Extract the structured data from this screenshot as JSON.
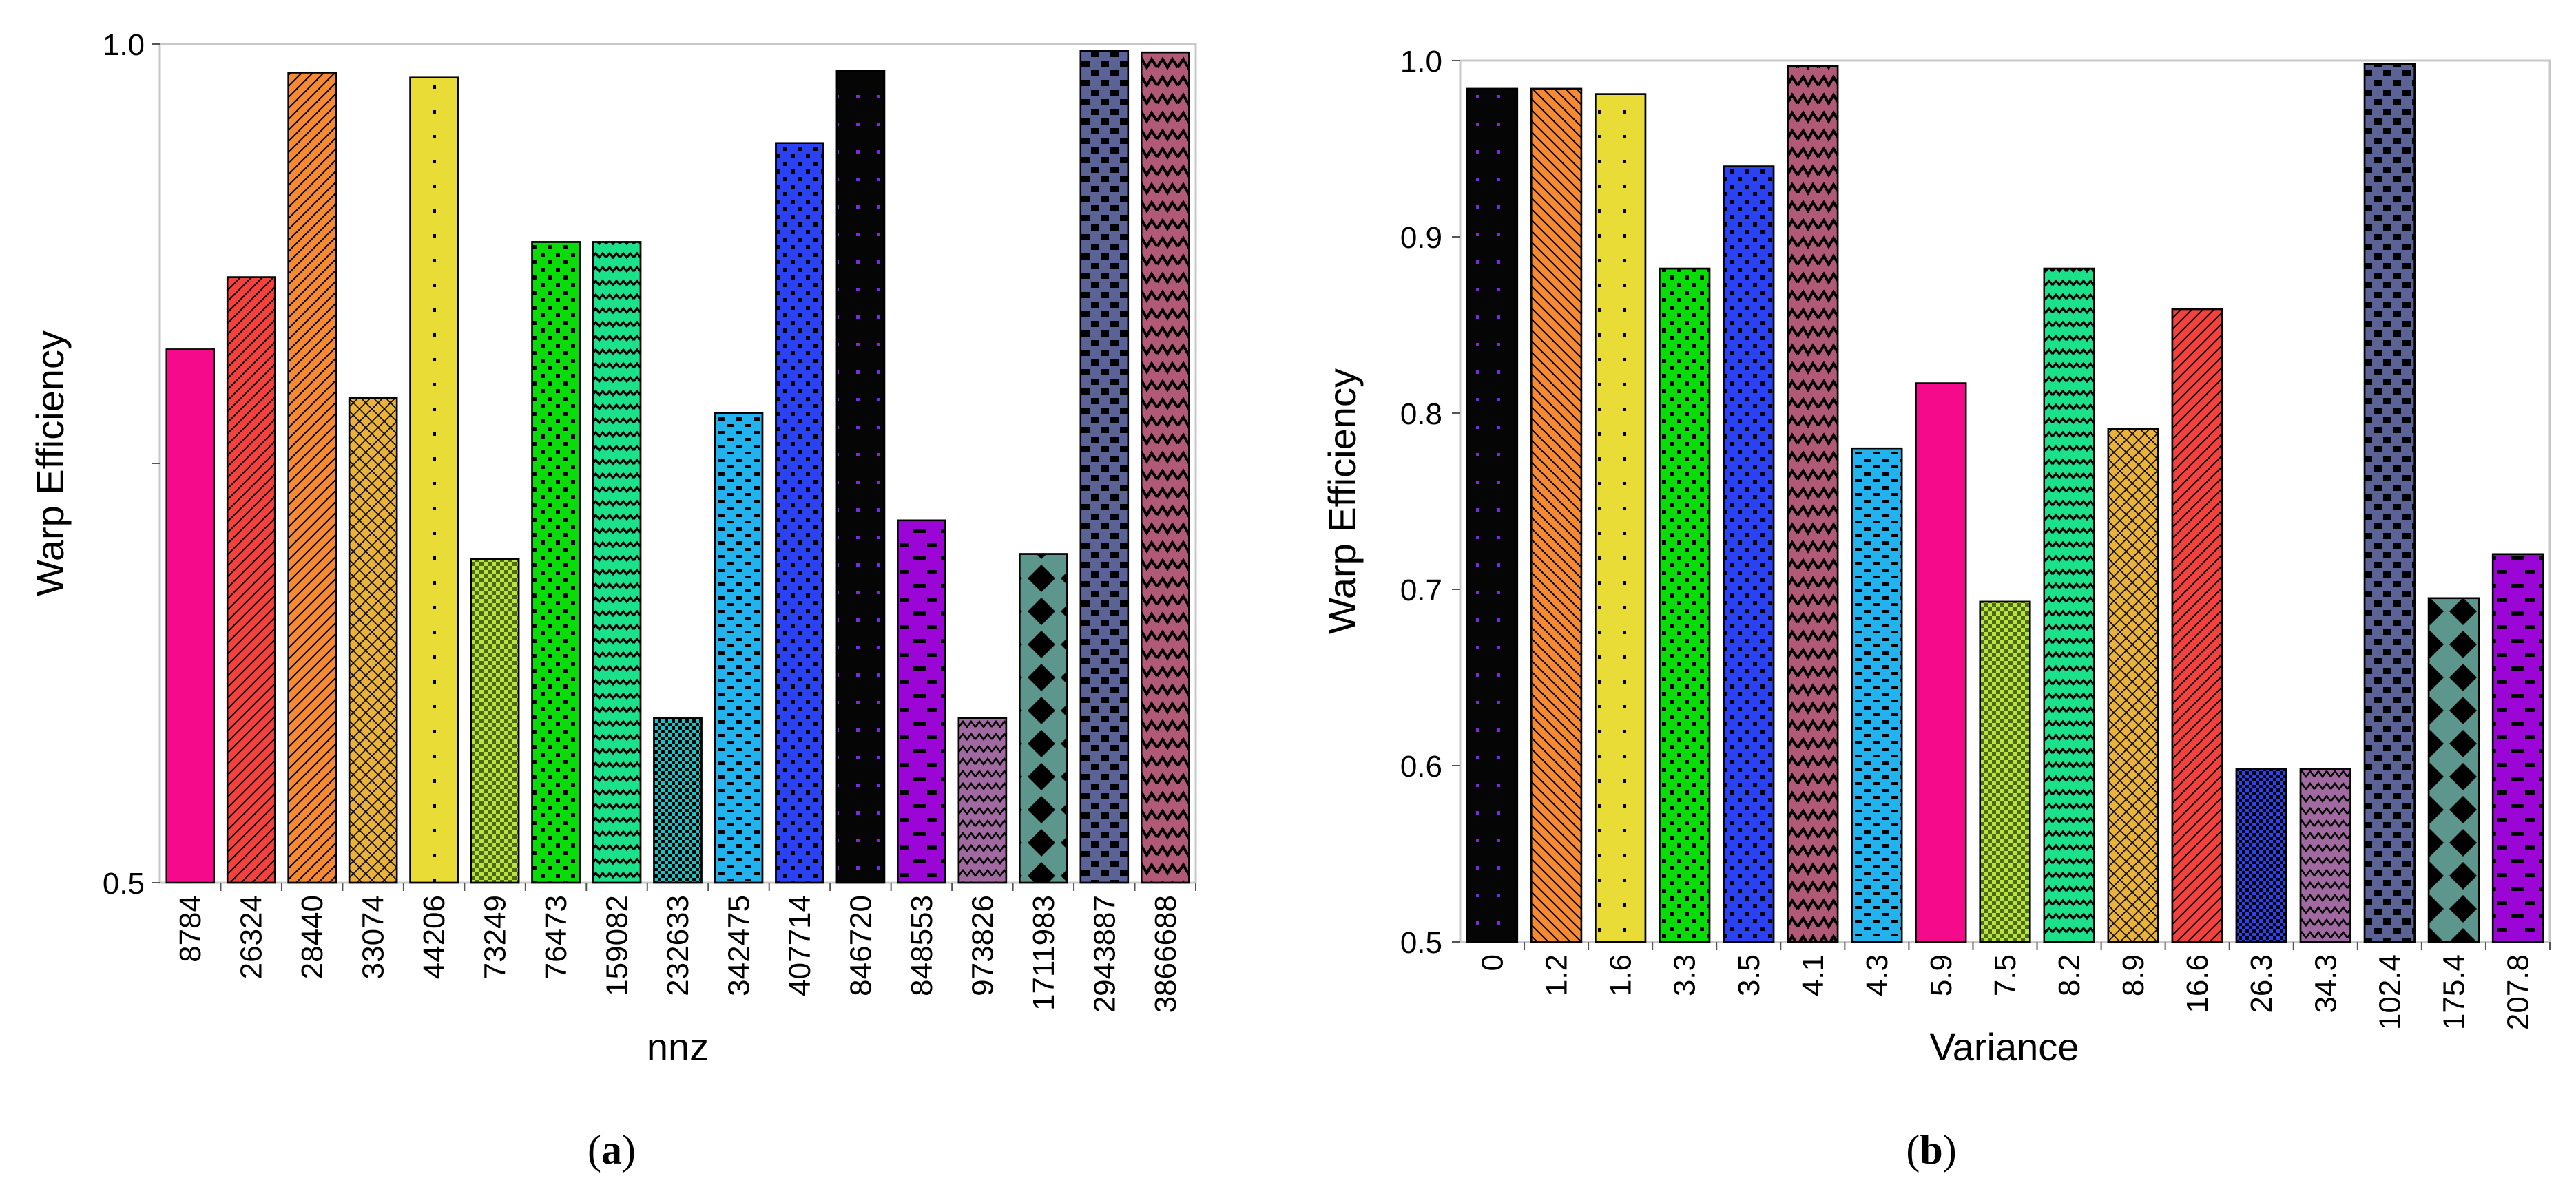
{
  "charts": [
    {
      "panel": "(a)",
      "caption_letter": "a",
      "type": "bar",
      "ylabel": "Warp Efficiency",
      "xlabel": "nnz",
      "ylim": [
        0.5,
        1.0
      ],
      "yticks": [
        {
          "v": 0.5,
          "label": "0.5"
        },
        {
          "v": 0.75,
          "label": ""
        },
        {
          "v": 1.0,
          "label": "1.0"
        }
      ],
      "categories": [
        "8784",
        "26324",
        "28440",
        "33074",
        "44206",
        "73249",
        "76473",
        "159082",
        "232633",
        "342475",
        "407714",
        "846720",
        "848553",
        "973826",
        "1711983",
        "2943887",
        "3866688"
      ],
      "values": [
        0.818,
        0.861,
        0.983,
        0.789,
        0.98,
        0.693,
        0.882,
        0.882,
        0.598,
        0.78,
        0.941,
        0.984,
        0.716,
        0.598,
        0.696,
        0.996,
        0.995
      ],
      "colors": [
        "#f50a8b",
        "#f5413d",
        "#f58a33",
        "#e9b23b",
        "#e9dc37",
        "#b4e63b",
        "#0adc0a",
        "#1be18a",
        "#16c5c5",
        "#22b3ee",
        "#2b42f2",
        "#050505",
        "#9b06d6",
        "#a06aa0",
        "#5d968c",
        "#5b6295",
        "#b05a78"
      ],
      "patterns": [
        "none",
        "hatch-r",
        "hatch-r",
        "crosshatch",
        "dots-sparse",
        "small-check",
        "dots-grid",
        "wave",
        "check",
        "dashes",
        "dots-grid",
        "dots-purple",
        "dashes-big",
        "zigzag",
        "diamonds",
        "bricks",
        "wave-big"
      ]
    },
    {
      "panel": "(b)",
      "caption_letter": "b",
      "type": "bar",
      "ylabel": "Warp Efficiency",
      "xlabel": "Variance",
      "ylim": [
        0.5,
        1.0
      ],
      "yticks": [
        {
          "v": 0.5,
          "label": "0.5"
        },
        {
          "v": 0.6,
          "label": "0.6"
        },
        {
          "v": 0.7,
          "label": "0.7"
        },
        {
          "v": 0.8,
          "label": "0.8"
        },
        {
          "v": 0.9,
          "label": "0.9"
        },
        {
          "v": 1.0,
          "label": "1.0"
        }
      ],
      "categories": [
        "0",
        "1.2",
        "1.6",
        "3.3",
        "3.5",
        "4.1",
        "4.3",
        "5.9",
        "7.5",
        "8.2",
        "8.9",
        "16.6",
        "26.3",
        "34.3",
        "102.4",
        "175.4",
        "207.8"
      ],
      "values": [
        0.984,
        0.984,
        0.981,
        0.882,
        0.94,
        0.997,
        0.78,
        0.817,
        0.693,
        0.882,
        0.791,
        0.859,
        0.598,
        0.598,
        0.998,
        0.695,
        0.72
      ],
      "colors": [
        "#050505",
        "#f58a33",
        "#e9dc37",
        "#0adc0a",
        "#2b42f2",
        "#b05a78",
        "#22b3ee",
        "#f50a8b",
        "#b4e63b",
        "#1be18a",
        "#e9b23b",
        "#f5413d",
        "#2b42f2",
        "#a06aa0",
        "#5b6295",
        "#5d968c",
        "#9b06d6"
      ],
      "patterns": [
        "dots-purple",
        "hatch-l",
        "dots-sparse",
        "dots-grid",
        "dots-grid",
        "wave-big",
        "dashes",
        "none",
        "small-check",
        "wave",
        "crosshatch",
        "hatch-r",
        "check",
        "zigzag",
        "bricks",
        "diamonds",
        "dashes-big"
      ]
    }
  ]
}
